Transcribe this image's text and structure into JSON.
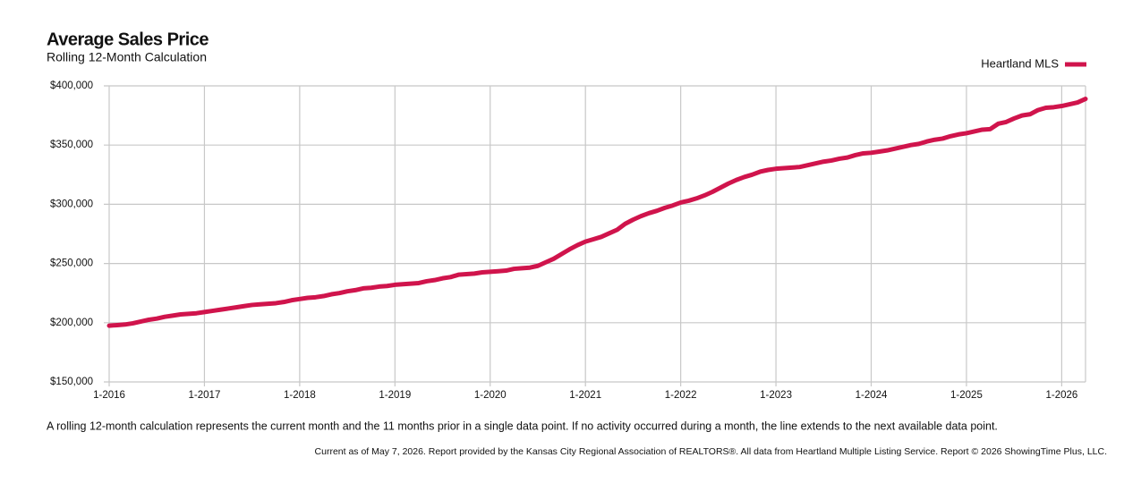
{
  "chart_data": {
    "type": "line",
    "title": "Average Sales Price",
    "subtitle": "Rolling 12-Month Calculation",
    "note": "A rolling 12-month calculation represents the current month and the 11 months prior in a single data point. If no activity occurred during a month, the line extends to the next available data point.",
    "footer": "Current as of May 7, 2026. Report provided by the Kansas City Regional Association of REALTORS®. All data from Heartland Multiple Listing Service. Report © 2026 ShowingTime Plus, LLC.",
    "categories": [
      "1-2016",
      null,
      null,
      null,
      null,
      null,
      null,
      null,
      null,
      null,
      null,
      null,
      "1-2017",
      null,
      null,
      null,
      null,
      null,
      null,
      null,
      null,
      null,
      null,
      null,
      "1-2018",
      null,
      null,
      null,
      null,
      null,
      null,
      null,
      null,
      null,
      null,
      null,
      "1-2019",
      null,
      null,
      null,
      null,
      null,
      null,
      null,
      null,
      null,
      null,
      null,
      "1-2020",
      null,
      null,
      null,
      null,
      null,
      null,
      null,
      null,
      null,
      null,
      null,
      "1-2021",
      null,
      null,
      null,
      null,
      null,
      null,
      null,
      null,
      null,
      null,
      null,
      "1-2022",
      null,
      null,
      null,
      null,
      null,
      null,
      null,
      null,
      null,
      null,
      null,
      "1-2023",
      null,
      null,
      null,
      null,
      null,
      null,
      null,
      null,
      null,
      null,
      null,
      "1-2024",
      null,
      null,
      null,
      null,
      null,
      null,
      null,
      null,
      null,
      null,
      null,
      "1-2025",
      null,
      null,
      null,
      null,
      null,
      null,
      null,
      null,
      null,
      null,
      null,
      "1-2026",
      null,
      null,
      null
    ],
    "series": [
      {
        "name": "Heartland MLS",
        "color": "#d0144c",
        "values": [
          197500,
          198000,
          198500,
          199500,
          201000,
          202500,
          203500,
          205000,
          206000,
          207000,
          207500,
          208000,
          209000,
          210000,
          211000,
          212000,
          213000,
          214000,
          215000,
          215500,
          216000,
          216500,
          217500,
          219000,
          220000,
          221000,
          221500,
          222500,
          224000,
          225000,
          226500,
          227500,
          229000,
          229500,
          230500,
          231000,
          232000,
          232500,
          233000,
          233500,
          235000,
          236000,
          237500,
          238500,
          240500,
          241000,
          241500,
          242500,
          243000,
          243500,
          244000,
          245500,
          246000,
          246500,
          248000,
          251000,
          254000,
          258000,
          262000,
          265500,
          268500,
          270500,
          272500,
          275500,
          278500,
          283500,
          287000,
          290000,
          292500,
          294500,
          297000,
          299000,
          301500,
          303000,
          305000,
          307500,
          310500,
          314000,
          317500,
          320500,
          323000,
          325000,
          327500,
          329000,
          330000,
          330500,
          331000,
          331500,
          333000,
          334500,
          336000,
          337000,
          338500,
          339500,
          341500,
          343000,
          343500,
          344500,
          345500,
          347000,
          348500,
          350000,
          351000,
          353000,
          354500,
          355500,
          357500,
          359000,
          360000,
          361500,
          363000,
          363500,
          368000,
          369500,
          372500,
          375000,
          376000,
          379500,
          381500,
          382000,
          383000,
          384500,
          386000,
          389000
        ]
      }
    ],
    "ylim": [
      150000,
      400000
    ],
    "yticks": [
      {
        "value": 150000,
        "label": "$150,000"
      },
      {
        "value": 200000,
        "label": "$200,000"
      },
      {
        "value": 250000,
        "label": "$250,000"
      },
      {
        "value": 300000,
        "label": "$300,000"
      },
      {
        "value": 350000,
        "label": "$350,000"
      },
      {
        "value": 400000,
        "label": "$400,000"
      }
    ],
    "grid": true,
    "legend": "top-right"
  }
}
